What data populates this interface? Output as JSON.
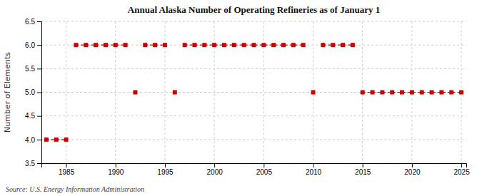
{
  "chart_data": {
    "type": "scatter",
    "title": "Annual Alaska Number of Operating Refineries as of January 1",
    "ylabel": "Number of Elements",
    "annotations": [
      "Source: U.S. Energy Information Administration"
    ],
    "color": "#cc0000",
    "marker": "square",
    "line_style": "dashed",
    "grid": true,
    "x": [
      1983,
      1984,
      1985,
      1986,
      1987,
      1988,
      1989,
      1990,
      1991,
      1992,
      1993,
      1994,
      1995,
      1996,
      1997,
      1998,
      1999,
      2000,
      2001,
      2002,
      2003,
      2004,
      2005,
      2006,
      2007,
      2008,
      2009,
      2010,
      2011,
      2012,
      2013,
      2014,
      2015,
      2016,
      2017,
      2018,
      2019,
      2020,
      2021,
      2022,
      2023,
      2024,
      2025
    ],
    "values": [
      4,
      4,
      4,
      6,
      6,
      6,
      6,
      6,
      6,
      5,
      6,
      6,
      6,
      5,
      6,
      6,
      6,
      6,
      6,
      6,
      6,
      6,
      6,
      6,
      6,
      6,
      6,
      5,
      6,
      6,
      6,
      6,
      5,
      5,
      5,
      5,
      5,
      5,
      5,
      5,
      5,
      5,
      5
    ],
    "xlim": [
      1982.5,
      2025.5
    ],
    "xticks": [
      1985,
      1990,
      1995,
      2000,
      2005,
      2010,
      2015,
      2020,
      2025
    ],
    "ylim": [
      3.5,
      6.5
    ],
    "yticks": [
      3.5,
      {
        "value": 4,
        "label": "4.0"
      },
      4.5,
      {
        "value": 5,
        "label": "5.0"
      },
      5.5,
      {
        "value": 6,
        "label": "6.0"
      },
      6.5
    ]
  }
}
